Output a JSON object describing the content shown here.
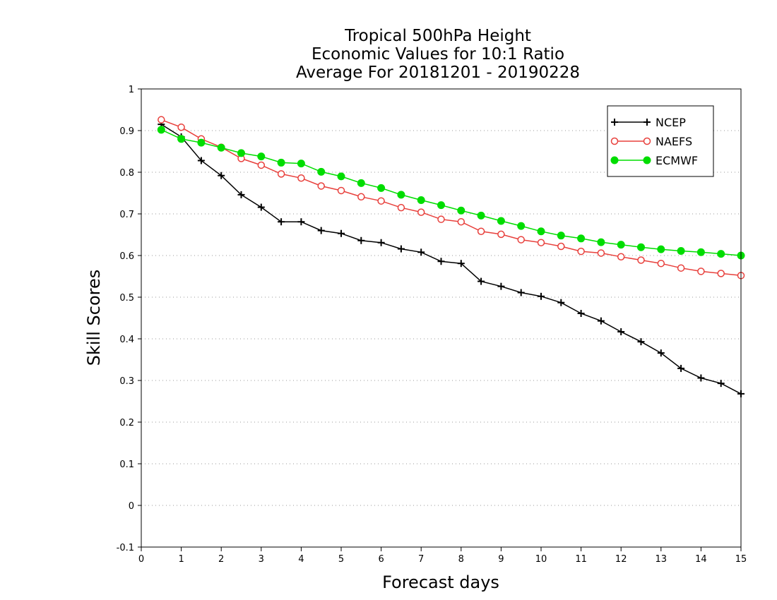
{
  "chart_data": {
    "type": "line",
    "title_lines": [
      "Tropical 500hPa Height",
      "Economic Values for 10:1 Ratio",
      "Average For 20181201 - 20190228"
    ],
    "xlabel": "Forecast days",
    "ylabel": "Skill Scores",
    "xlim": [
      0,
      15
    ],
    "ylim": [
      -0.1,
      1
    ],
    "x_ticks": [
      0,
      1,
      2,
      3,
      4,
      5,
      6,
      7,
      8,
      9,
      10,
      11,
      12,
      13,
      14,
      15
    ],
    "x_tick_labels": [
      "0",
      "1",
      "2",
      "3",
      "4",
      "5",
      "6",
      "7",
      "8",
      "9",
      "10",
      "11",
      "12",
      "13",
      "14",
      "15"
    ],
    "y_ticks": [
      -0.1,
      0,
      0.1,
      0.2,
      0.3,
      0.4,
      0.5,
      0.6,
      0.7,
      0.8,
      0.9,
      1
    ],
    "y_tick_labels": [
      "-0.1",
      "0",
      "0.1",
      "0.2",
      "0.3",
      "0.4",
      "0.5",
      "0.6",
      "0.7",
      "0.8",
      "0.9",
      "1"
    ],
    "grid": "horizontal dotted",
    "legend_position": "top-right",
    "x": [
      0.5,
      1,
      1.5,
      2,
      2.5,
      3,
      3.5,
      4,
      4.5,
      5,
      5.5,
      6,
      6.5,
      7,
      7.5,
      8,
      8.5,
      9,
      9.5,
      10,
      10.5,
      11,
      11.5,
      12,
      12.5,
      13,
      13.5,
      14,
      14.5,
      15
    ],
    "series": [
      {
        "name": "NCEP",
        "color": "#000000",
        "marker": "plus",
        "values": [
          0.915,
          0.885,
          0.828,
          0.792,
          0.746,
          0.716,
          0.681,
          0.681,
          0.66,
          0.653,
          0.636,
          0.631,
          0.616,
          0.608,
          0.586,
          0.581,
          0.538,
          0.526,
          0.511,
          0.502,
          0.487,
          0.461,
          0.443,
          0.417,
          0.393,
          0.366,
          0.329,
          0.306,
          0.293,
          0.268
        ]
      },
      {
        "name": "NAEFS",
        "color": "#e8403c",
        "marker": "open-circle",
        "values": [
          0.926,
          0.908,
          0.88,
          0.86,
          0.833,
          0.817,
          0.796,
          0.786,
          0.767,
          0.756,
          0.741,
          0.731,
          0.715,
          0.704,
          0.687,
          0.681,
          0.658,
          0.651,
          0.638,
          0.631,
          0.622,
          0.61,
          0.606,
          0.597,
          0.589,
          0.581,
          0.57,
          0.562,
          0.557,
          0.552
        ]
      },
      {
        "name": "ECMWF",
        "color": "#00dd00",
        "marker": "filled-circle",
        "values": [
          0.902,
          0.88,
          0.871,
          0.859,
          0.846,
          0.838,
          0.823,
          0.821,
          0.801,
          0.79,
          0.774,
          0.762,
          0.746,
          0.733,
          0.721,
          0.708,
          0.696,
          0.683,
          0.671,
          0.658,
          0.648,
          0.641,
          0.632,
          0.626,
          0.62,
          0.615,
          0.611,
          0.608,
          0.604,
          0.6
        ]
      }
    ]
  }
}
